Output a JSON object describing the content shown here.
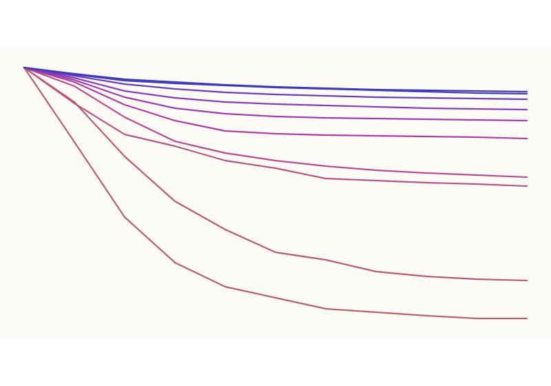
{
  "chart_data": {
    "type": "line",
    "x": [
      0,
      1,
      2,
      3,
      4,
      5,
      6,
      7,
      8,
      9,
      10
    ],
    "xlim": [
      0,
      10
    ],
    "ylim": [
      0,
      420
    ],
    "series": [
      {
        "color": "#b8606e",
        "values": [
          392,
          284,
          175,
          109,
          74,
          58,
          42,
          37,
          32,
          28,
          28
        ]
      },
      {
        "color": "#b85a72",
        "values": [
          392,
          342,
          263,
          198,
          157,
          124,
          113,
          96,
          89,
          85,
          83
        ]
      },
      {
        "color": "#b8557f",
        "values": [
          392,
          340,
          295,
          278,
          257,
          246,
          231,
          228,
          225,
          223,
          220
        ]
      },
      {
        "color": "#b84a90",
        "values": [
          392,
          365,
          320,
          285,
          268,
          257,
          249,
          243,
          239,
          236,
          233
        ]
      },
      {
        "color": "#b03ca2",
        "values": [
          392,
          371,
          338,
          315,
          300,
          296,
          294,
          293,
          292,
          291,
          289
        ]
      },
      {
        "color": "#a03cb0",
        "values": [
          392,
          374,
          349,
          333,
          325,
          321,
          319,
          318,
          317,
          316,
          315
        ]
      },
      {
        "color": "#883cb5",
        "values": [
          392,
          377,
          358,
          348,
          342,
          339,
          337,
          335,
          333,
          332,
          331
        ]
      },
      {
        "color": "#6a3cb8",
        "values": [
          392,
          380,
          368,
          361,
          356,
          353,
          351,
          349,
          348,
          347,
          346
        ]
      },
      {
        "color": "#4a3cb8",
        "values": [
          392,
          382,
          373,
          369,
          366,
          363,
          361,
          359,
          357,
          355,
          354
        ]
      },
      {
        "color": "#3a3db8",
        "values": [
          392,
          383,
          375,
          371,
          367,
          364,
          362,
          360,
          359,
          358,
          357
        ]
      }
    ]
  }
}
